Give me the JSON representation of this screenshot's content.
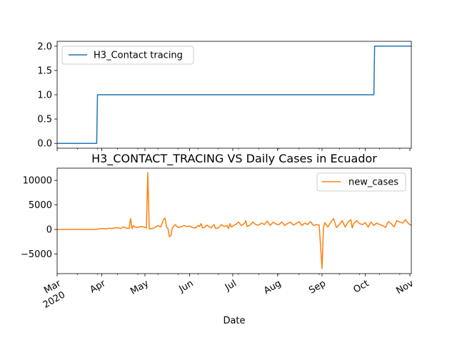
{
  "chart_data": [
    {
      "type": "line",
      "title": "",
      "xlabel": "",
      "ylabel": "",
      "ylim": [
        -0.1,
        2.1
      ],
      "x_range_days": [
        0,
        246
      ],
      "yticks": [
        0.0,
        0.5,
        1.0,
        1.5,
        2.0
      ],
      "ytick_labels": [
        "0.0",
        "0.5",
        "1.0",
        "1.5",
        "2.0"
      ],
      "legend_location": "upper-left",
      "series": [
        {
          "name": "H3_Contact tracing",
          "color": "#1f77b4",
          "x": [
            0,
            27.5,
            28,
            220,
            220.5,
            246
          ],
          "y": [
            0,
            0,
            1,
            1,
            2,
            2
          ]
        }
      ]
    },
    {
      "type": "line",
      "title": "H3_CONTACT_TRACING VS Daily Cases in Ecuador",
      "xlabel": "Date",
      "ylabel": "",
      "ylim": [
        -9000,
        12500
      ],
      "x_range_days": [
        0,
        246
      ],
      "yticks": [
        -5000,
        0,
        5000,
        10000
      ],
      "ytick_labels": [
        "−5000",
        "0",
        "5000",
        "10000"
      ],
      "legend_location": "upper-right",
      "x_major_ticks": [
        {
          "day": 0,
          "label": "Mar",
          "sublabel": "2020"
        },
        {
          "day": 31,
          "label": "Apr"
        },
        {
          "day": 61,
          "label": "May"
        },
        {
          "day": 92,
          "label": "Jun"
        },
        {
          "day": 122,
          "label": "Jul"
        },
        {
          "day": 153,
          "label": "Aug"
        },
        {
          "day": 184,
          "label": "Sep"
        },
        {
          "day": 214,
          "label": "Oct"
        },
        {
          "day": 245,
          "label": "Nov"
        }
      ],
      "x_minor_ticks": [
        14,
        28,
        42,
        56,
        70,
        84,
        98,
        112,
        126,
        140,
        154,
        168,
        182,
        196,
        210,
        224,
        238
      ],
      "series": [
        {
          "name": "new_cases",
          "color": "#ff7f0e",
          "x": [
            0,
            10,
            20,
            27,
            30,
            32,
            34,
            36,
            38,
            40,
            42,
            44,
            46,
            48,
            50,
            51,
            52,
            53,
            54,
            56,
            58,
            60,
            62,
            63,
            64,
            65,
            66,
            68,
            70,
            72,
            74,
            75,
            76,
            77,
            78,
            79,
            80,
            82,
            84,
            86,
            88,
            90,
            92,
            94,
            96,
            98,
            99,
            100,
            101,
            102,
            104,
            106,
            107,
            108,
            109,
            110,
            112,
            114,
            116,
            118,
            119,
            120,
            121,
            122,
            124,
            126,
            128,
            130,
            131,
            132,
            134,
            136,
            138,
            140,
            142,
            144,
            146,
            148,
            150,
            152,
            154,
            156,
            158,
            160,
            162,
            164,
            166,
            168,
            170,
            172,
            174,
            176,
            178,
            180,
            182,
            184,
            185,
            186,
            187,
            188,
            190,
            192,
            194,
            196,
            198,
            199,
            200,
            202,
            204,
            205,
            206,
            208,
            210,
            212,
            214,
            216,
            218,
            220,
            222,
            224,
            226,
            228,
            230,
            232,
            234,
            236,
            238,
            240,
            242,
            244,
            246
          ],
          "y": [
            0,
            0,
            0,
            20,
            150,
            200,
            100,
            250,
            200,
            300,
            350,
            200,
            500,
            300,
            200,
            2200,
            150,
            800,
            500,
            400,
            600,
            500,
            300,
            11600,
            150,
            100,
            200,
            400,
            800,
            500,
            2100,
            2300,
            500,
            200,
            -1500,
            -1200,
            300,
            1000,
            400,
            500,
            800,
            600,
            700,
            400,
            300,
            800,
            600,
            1200,
            300,
            400,
            900,
            500,
            300,
            700,
            1000,
            200,
            300,
            1000,
            600,
            800,
            200,
            1200,
            500,
            700,
            1000,
            1500,
            800,
            1200,
            1800,
            600,
            900,
            1500,
            1000,
            900,
            1300,
            1000,
            1700,
            800,
            1500,
            1100,
            1000,
            1500,
            800,
            1200,
            1500,
            900,
            1200,
            1600,
            800,
            1300,
            1000,
            1600,
            800,
            1000,
            900,
            -8000,
            400,
            1400,
            900,
            500,
            1500,
            2200,
            400,
            1000,
            1800,
            1200,
            500,
            1500,
            2000,
            300,
            1200,
            1800,
            1200,
            1000,
            1400,
            500,
            1500,
            800,
            1300,
            1000,
            800,
            400,
            1600,
            1200,
            500,
            1800,
            1500,
            1300,
            2000,
            1200,
            800
          ]
        }
      ]
    }
  ]
}
